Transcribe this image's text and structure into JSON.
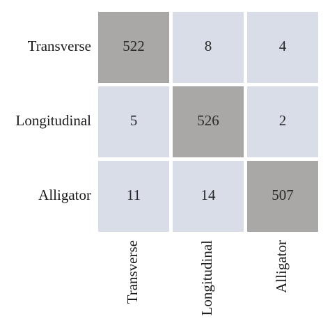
{
  "chart_data": {
    "type": "heatmap",
    "rows": [
      "Transverse",
      "Longitudinal",
      "Alligator"
    ],
    "columns": [
      "Transverse",
      "Longitudinal",
      "Alligator"
    ],
    "values": [
      [
        522,
        8,
        4
      ],
      [
        5,
        526,
        2
      ],
      [
        11,
        14,
        507
      ]
    ],
    "colors": {
      "high": "#a9a8a6",
      "low": "#d9dde8",
      "text": "#1a1a1a"
    }
  }
}
